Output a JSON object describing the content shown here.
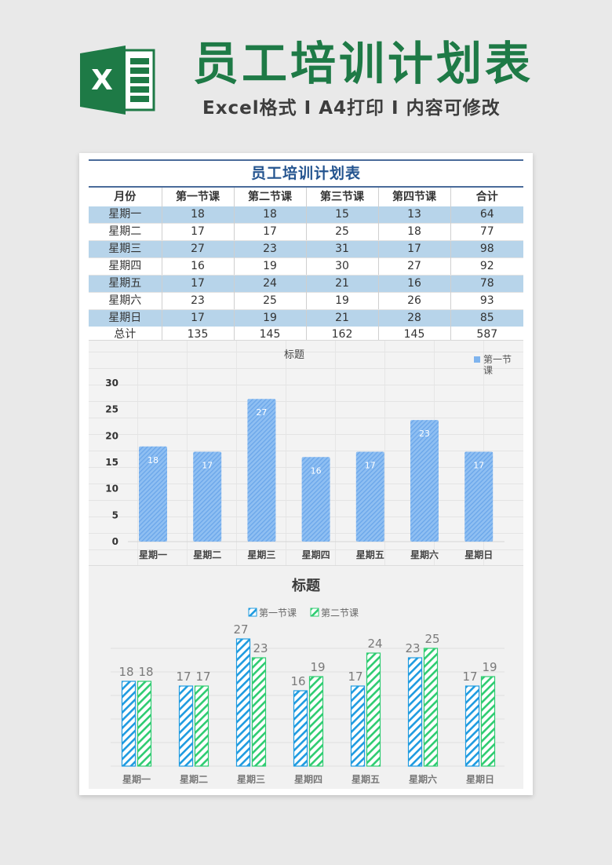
{
  "banner": {
    "icon": "excel-icon",
    "icon_letter": "X",
    "title": "员工培训计划表",
    "subtitle": "Excel格式 I A4打印 I 内容可修改",
    "title_color": "#1e7a46"
  },
  "table": {
    "title": "员工培训计划表",
    "headers": [
      "月份",
      "第一节课",
      "第二节课",
      "第三节课",
      "第四节课",
      "合计"
    ],
    "rows": [
      [
        "星期一",
        "18",
        "18",
        "15",
        "13",
        "64"
      ],
      [
        "星期二",
        "17",
        "17",
        "25",
        "18",
        "77"
      ],
      [
        "星期三",
        "27",
        "23",
        "31",
        "17",
        "98"
      ],
      [
        "星期四",
        "16",
        "19",
        "30",
        "27",
        "92"
      ],
      [
        "星期五",
        "17",
        "24",
        "21",
        "16",
        "78"
      ],
      [
        "星期六",
        "23",
        "25",
        "19",
        "26",
        "93"
      ],
      [
        "星期日",
        "17",
        "19",
        "21",
        "28",
        "85"
      ]
    ],
    "total_row": [
      "总计",
      "135",
      "145",
      "162",
      "145",
      "587"
    ],
    "stripe_color": "#b7d4ea",
    "title_color": "#24548f"
  },
  "chart_data": [
    {
      "type": "bar",
      "title": "标题",
      "categories": [
        "星期一",
        "星期二",
        "星期三",
        "星期四",
        "星期五",
        "星期六",
        "星期日"
      ],
      "series": [
        {
          "name": "第一节课",
          "values": [
            18,
            17,
            27,
            16,
            17,
            23,
            17
          ],
          "color": "#7fb4ee"
        }
      ],
      "legend": {
        "position": "top-right",
        "entries": [
          "第一节课"
        ]
      },
      "yticks": [
        0,
        5,
        10,
        15,
        20,
        25,
        30
      ],
      "ylim": [
        0,
        30
      ],
      "data_labels": true,
      "xlabel": "",
      "ylabel": "",
      "grid": false
    },
    {
      "type": "bar",
      "title": "标题",
      "categories": [
        "星期一",
        "星期二",
        "星期三",
        "星期四",
        "星期五",
        "星期六",
        "星期日"
      ],
      "series": [
        {
          "name": "第一节课",
          "values": [
            18,
            17,
            27,
            16,
            17,
            23,
            17
          ],
          "color": "#1e9be0"
        },
        {
          "name": "第二节课",
          "values": [
            18,
            17,
            23,
            19,
            24,
            25,
            19
          ],
          "color": "#2ecc71"
        }
      ],
      "legend": {
        "position": "top",
        "entries": [
          "第一节课",
          "第二节课"
        ]
      },
      "data_labels": true,
      "ylim": [
        0,
        30
      ],
      "grid": true,
      "xlabel": "",
      "ylabel": ""
    }
  ]
}
